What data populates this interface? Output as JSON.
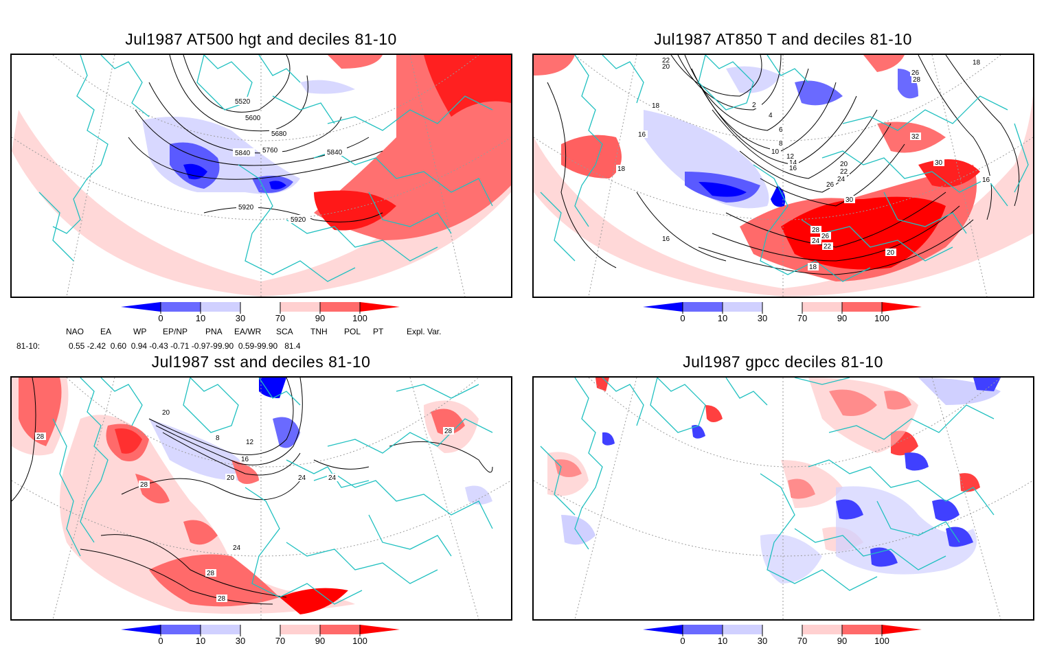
{
  "panels": [
    {
      "title": "Jul1987 AT500 hgt and deciles 81-10",
      "contour_labels": [
        "5520",
        "5600",
        "5680",
        "5760",
        "5840",
        "5840",
        "5920",
        "5920"
      ]
    },
    {
      "title": "Jul1987 AT850 T and deciles 81-10",
      "contour_labels": [
        "22",
        "20",
        "18",
        "16",
        "16",
        "18",
        "2",
        "4",
        "6",
        "8",
        "10",
        "12",
        "14",
        "16",
        "20",
        "22",
        "24",
        "26",
        "30",
        "28",
        "26",
        "24",
        "22",
        "18",
        "20",
        "32",
        "30",
        "26",
        "28",
        "16",
        "18"
      ]
    },
    {
      "title": "Jul1987 sst and deciles 81-10",
      "contour_labels": [
        "28",
        "20",
        "8",
        "12",
        "16",
        "20",
        "24",
        "24",
        "28",
        "24",
        "28",
        "28",
        "28"
      ]
    },
    {
      "title": "Jul1987 gpcc deciles 81-10",
      "contour_labels": []
    }
  ],
  "colorbar": {
    "ticks": [
      "0",
      "10",
      "30",
      "70",
      "90",
      "100"
    ],
    "colors": [
      "#0000ff",
      "#6a6aff",
      "#d0d0ff",
      "#ffffff",
      "#ffd0d0",
      "#ff6a6a",
      "#ff0000"
    ]
  },
  "indices": {
    "headers": [
      "NAO",
      "EA",
      "WP",
      "EP/NP",
      "PNA",
      "EA/WR",
      "SCA",
      "TNH",
      "POL",
      "PT",
      "Expl. Var."
    ],
    "row_label": "81-10:",
    "values": "0.55 -2.42  0.60  0.94 -0.43 -0.71 -0.97-99.90  0.59-99.90   81.4"
  },
  "map_style": {
    "coast_color": "#20c0c0",
    "grid_color": "#9a9a9a",
    "contour_color": "#000000"
  }
}
